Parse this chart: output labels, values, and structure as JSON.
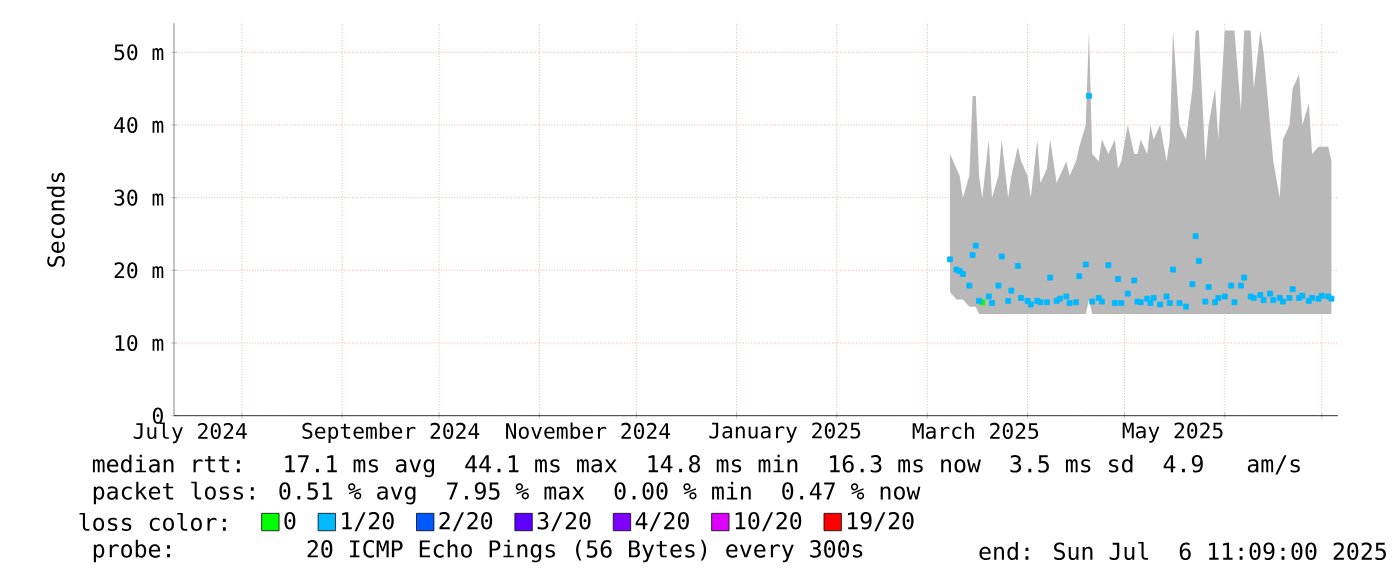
{
  "chart_data": {
    "type": "scatter",
    "marker": "square",
    "ylabel": "Seconds",
    "xlim": [
      "2024-07-11",
      "2025-07-06"
    ],
    "ylim": [
      0,
      54
    ],
    "xticks": [
      {
        "value": "2024-07-16",
        "label": "July 2024"
      },
      {
        "value": "2024-08-01",
        "label": null
      },
      {
        "value": "2024-09-01",
        "label": null
      },
      {
        "value": "2024-09-16",
        "label": "September 2024"
      },
      {
        "value": "2024-10-01",
        "label": null
      },
      {
        "value": "2024-11-01",
        "label": null
      },
      {
        "value": "2024-11-16",
        "label": "November 2024"
      },
      {
        "value": "2024-12-01",
        "label": null
      },
      {
        "value": "2025-01-01",
        "label": null
      },
      {
        "value": "2025-01-16",
        "label": "January 2025"
      },
      {
        "value": "2025-02-01",
        "label": null
      },
      {
        "value": "2025-03-01",
        "label": null
      },
      {
        "value": "2025-03-16",
        "label": "March 2025"
      },
      {
        "value": "2025-04-01",
        "label": null
      },
      {
        "value": "2025-05-01",
        "label": null
      },
      {
        "value": "2025-05-16",
        "label": "May 2025"
      },
      {
        "value": "2025-06-01",
        "label": null
      },
      {
        "value": "2025-07-01",
        "label": null
      }
    ],
    "yticks": [
      0,
      {
        "value": 10,
        "label": "10 m"
      },
      {
        "value": 20,
        "label": "20 m"
      },
      {
        "value": 30,
        "label": "30 m"
      },
      {
        "value": 40,
        "label": "40 m"
      },
      {
        "value": 50,
        "label": "50 m"
      }
    ],
    "grid": true,
    "legend": "bottom",
    "legend_title": "loss color:",
    "x": [
      "2025-03-08",
      "2025-03-10",
      "2025-03-11",
      "2025-03-12",
      "2025-03-14",
      "2025-03-15",
      "2025-03-16",
      "2025-03-17",
      "2025-03-18",
      "2025-03-20",
      "2025-03-21",
      "2025-03-23",
      "2025-03-24",
      "2025-03-26",
      "2025-03-27",
      "2025-03-29",
      "2025-03-30",
      "2025-04-01",
      "2025-04-02",
      "2025-04-04",
      "2025-04-05",
      "2025-04-07",
      "2025-04-08",
      "2025-04-10",
      "2025-04-11",
      "2025-04-13",
      "2025-04-14",
      "2025-04-16",
      "2025-04-17",
      "2025-04-19",
      "2025-04-20",
      "2025-04-21",
      "2025-04-23",
      "2025-04-24",
      "2025-04-26",
      "2025-04-28",
      "2025-04-29",
      "2025-04-30",
      "2025-05-02",
      "2025-05-04",
      "2025-05-05",
      "2025-05-06",
      "2025-05-08",
      "2025-05-09",
      "2025-05-10",
      "2025-05-12",
      "2025-05-14",
      "2025-05-15",
      "2025-05-16",
      "2025-05-18",
      "2025-05-20",
      "2025-05-22",
      "2025-05-23",
      "2025-05-24",
      "2025-05-26",
      "2025-05-27",
      "2025-05-29",
      "2025-05-30",
      "2025-06-01",
      "2025-06-03",
      "2025-06-04",
      "2025-06-06",
      "2025-06-07",
      "2025-06-09",
      "2025-06-10",
      "2025-06-12",
      "2025-06-13",
      "2025-06-15",
      "2025-06-16",
      "2025-06-18",
      "2025-06-19",
      "2025-06-21",
      "2025-06-22",
      "2025-06-24",
      "2025-06-25",
      "2025-06-27",
      "2025-06-28",
      "2025-06-30",
      "2025-07-01",
      "2025-07-03",
      "2025-07-04"
    ],
    "series": [
      {
        "name": "0",
        "color": "#00ff00",
        "values": [
          null,
          null,
          null,
          null,
          null,
          null,
          null,
          null,
          15.6,
          null,
          null,
          null,
          null,
          null,
          null,
          null,
          null,
          null,
          null,
          null,
          null,
          null,
          null,
          null,
          null,
          null,
          null,
          null,
          null,
          null,
          null,
          null,
          null,
          null,
          null,
          null,
          null,
          null,
          null,
          null,
          null,
          null,
          null,
          null,
          null,
          null,
          null,
          null,
          null,
          null,
          null,
          null,
          null,
          null,
          null,
          null,
          null,
          null,
          null,
          null,
          null,
          null,
          null,
          null,
          null,
          null,
          null,
          null,
          null,
          null,
          null,
          null,
          null,
          null,
          null,
          null,
          null,
          null,
          null,
          null,
          null
        ]
      },
      {
        "name": "1/20",
        "color": "#00b8ff",
        "values": [
          21.5,
          20.1,
          19.9,
          19.5,
          17.9,
          22.1,
          23.4,
          15.8,
          null,
          16.4,
          15.5,
          17.9,
          21.9,
          15.8,
          17.2,
          20.6,
          16.2,
          15.8,
          15.3,
          15.8,
          15.6,
          15.6,
          19.0,
          15.8,
          16.1,
          16.4,
          15.5,
          15.6,
          19.2,
          20.8,
          44.0,
          15.7,
          16.2,
          15.7,
          20.7,
          15.5,
          18.8,
          15.5,
          16.8,
          18.6,
          15.7,
          15.6,
          16.1,
          15.5,
          16.2,
          15.3,
          16.4,
          15.5,
          20.1,
          15.5,
          15.0,
          18.1,
          24.7,
          21.3,
          15.7,
          17.7,
          15.6,
          16.2,
          16.4,
          17.9,
          15.6,
          17.9,
          19.0,
          16.4,
          16.2,
          16.6,
          15.9,
          16.8,
          15.9,
          16.2,
          15.7,
          16.2,
          17.4,
          16.2,
          16.5,
          15.8,
          16.2,
          16.1,
          16.5,
          16.4,
          16.1
        ],
        "lower": [
          17,
          16,
          16,
          16,
          15,
          15,
          15,
          14,
          14,
          14,
          14,
          14,
          14,
          14,
          14,
          14,
          14,
          14,
          14,
          14,
          14,
          14,
          14,
          14,
          14,
          14,
          14,
          14,
          14,
          14,
          16,
          14,
          14,
          14,
          14,
          14,
          14,
          14,
          14,
          14,
          14,
          14,
          14,
          14,
          14,
          14,
          14,
          14,
          14,
          14,
          14,
          14,
          14,
          14,
          14,
          14,
          14,
          14,
          14,
          14,
          14,
          14,
          14,
          14,
          14,
          14,
          14,
          14,
          14,
          14,
          14,
          14,
          14,
          14,
          14,
          14,
          14,
          14,
          14,
          14,
          14
        ],
        "upper": [
          36,
          34,
          33,
          30,
          33,
          44,
          44,
          33,
          30,
          38,
          30,
          33,
          38,
          30,
          33,
          37,
          35,
          33,
          30,
          38,
          32,
          34,
          38,
          32,
          33,
          35,
          33,
          35,
          37,
          40,
          53,
          36,
          35,
          38,
          36,
          38,
          34,
          35,
          40,
          36,
          36,
          38,
          36,
          40,
          38,
          40,
          35,
          38,
          53,
          40,
          38,
          45,
          53,
          53,
          35,
          40,
          45,
          38,
          53,
          53,
          53,
          42,
          53,
          53,
          45,
          53,
          50,
          40,
          35,
          30,
          38,
          40,
          45,
          47,
          40,
          43,
          36,
          37,
          37,
          37,
          35
        ]
      },
      {
        "name": "2/20",
        "color": "#0059ff",
        "values": [
          null,
          null,
          null,
          null,
          null,
          null,
          null,
          null,
          null,
          null,
          null,
          null,
          null,
          null,
          null,
          null,
          null,
          null,
          null,
          null,
          null,
          null,
          null,
          null,
          null,
          null,
          null,
          null,
          null,
          null,
          null,
          null,
          null,
          null,
          null,
          null,
          null,
          null,
          null,
          null,
          null,
          null,
          null,
          null,
          null,
          null,
          null,
          null,
          null,
          null,
          null,
          null,
          null,
          null,
          null,
          null,
          null,
          null,
          null,
          null,
          null,
          null,
          null,
          null,
          null,
          null,
          null,
          null,
          null,
          null,
          null,
          null,
          null,
          null,
          null,
          null,
          null,
          null,
          null,
          null,
          null
        ]
      },
      {
        "name": "3/20",
        "color": "#5e00ff",
        "values": [
          null,
          null,
          null,
          null,
          null,
          null,
          null,
          null,
          null,
          null,
          null,
          null,
          null,
          null,
          null,
          null,
          null,
          null,
          null,
          null,
          null,
          null,
          null,
          null,
          null,
          null,
          null,
          null,
          null,
          null,
          null,
          null,
          null,
          null,
          null,
          null,
          null,
          null,
          null,
          null,
          null,
          null,
          null,
          null,
          null,
          null,
          null,
          null,
          null,
          null,
          null,
          null,
          null,
          null,
          null,
          null,
          null,
          null,
          null,
          null,
          null,
          null,
          null,
          null,
          null,
          null,
          null,
          null,
          null,
          null,
          null,
          null,
          null,
          null,
          null,
          null,
          null,
          null,
          null,
          null,
          null
        ]
      },
      {
        "name": "4/20",
        "color": "#7e00ff",
        "values": [
          null,
          null,
          null,
          null,
          null,
          null,
          null,
          null,
          null,
          null,
          null,
          null,
          null,
          null,
          null,
          null,
          null,
          null,
          null,
          null,
          null,
          null,
          null,
          null,
          null,
          null,
          null,
          null,
          null,
          null,
          null,
          null,
          null,
          null,
          null,
          null,
          null,
          null,
          null,
          null,
          null,
          null,
          null,
          null,
          null,
          null,
          null,
          null,
          null,
          null,
          null,
          null,
          null,
          null,
          null,
          null,
          null,
          null,
          null,
          null,
          null,
          null,
          null,
          null,
          null,
          null,
          null,
          null,
          null,
          null,
          null,
          null,
          null,
          null,
          null,
          null,
          null,
          null,
          null,
          null,
          null
        ]
      },
      {
        "name": "10/20",
        "color": "#dd00ff",
        "values": [
          null,
          null,
          null,
          null,
          null,
          null,
          null,
          null,
          null,
          null,
          null,
          null,
          null,
          null,
          null,
          null,
          null,
          null,
          null,
          null,
          null,
          null,
          null,
          null,
          null,
          null,
          null,
          null,
          null,
          null,
          null,
          null,
          null,
          null,
          null,
          null,
          null,
          null,
          null,
          null,
          null,
          null,
          null,
          null,
          null,
          null,
          null,
          null,
          null,
          null,
          null,
          null,
          null,
          null,
          null,
          null,
          null,
          null,
          null,
          null,
          null,
          null,
          null,
          null,
          null,
          null,
          null,
          null,
          null,
          null,
          null,
          null,
          null,
          null,
          null,
          null,
          null,
          null,
          null,
          null,
          null
        ]
      },
      {
        "name": "19/20",
        "color": "#ff0000",
        "values": [
          null,
          null,
          null,
          null,
          null,
          null,
          null,
          null,
          null,
          null,
          null,
          null,
          null,
          null,
          null,
          null,
          null,
          null,
          null,
          null,
          null,
          null,
          null,
          null,
          null,
          null,
          null,
          null,
          null,
          null,
          null,
          null,
          null,
          null,
          null,
          null,
          null,
          null,
          null,
          null,
          null,
          null,
          null,
          null,
          null,
          null,
          null,
          null,
          null,
          null,
          null,
          null,
          null,
          null,
          null,
          null,
          null,
          null,
          null,
          null,
          null,
          null,
          null,
          null,
          null,
          null,
          null,
          null,
          null,
          null,
          null,
          null,
          null,
          null,
          null,
          null,
          null,
          null,
          null,
          null,
          null
        ]
      }
    ],
    "annotations": [
      "median rtt:  17.1 ms avg  44.1 ms max  14.8 ms min  16.3 ms now  3.5 ms sd  4.9   am/s",
      "packet loss: 0.51 % avg  7.95 % max  0.00 % min  0.47 % now",
      "probe:       20 ICMP Echo Pings (56 Bytes) every 300s",
      "end: Sun Jul  6 11:09:00 2025"
    ]
  }
}
